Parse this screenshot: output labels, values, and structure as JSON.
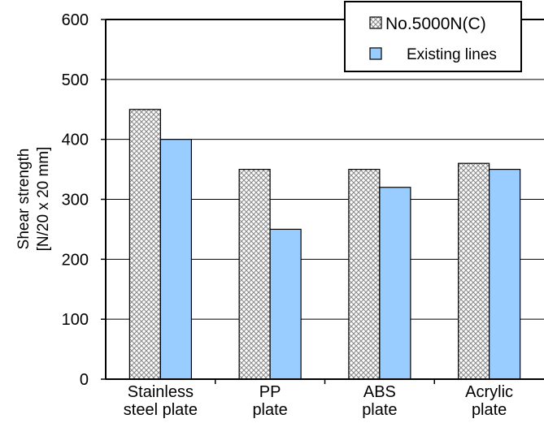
{
  "chart_data": {
    "type": "bar",
    "categories": [
      [
        "Stainless",
        "steel plate"
      ],
      [
        "PP",
        "plate"
      ],
      [
        "ABS",
        "plate"
      ],
      [
        "Acrylic",
        "plate"
      ]
    ],
    "series": [
      {
        "name": "No.5000N(C)",
        "values": [
          450,
          350,
          350,
          360
        ],
        "pattern": "crosshatch"
      },
      {
        "name": "Existing lines",
        "values": [
          400,
          250,
          320,
          350
        ],
        "color": "#99ccff"
      }
    ],
    "ylabel": [
      "Shear strength",
      "[N/20 x 20 mm]"
    ],
    "ylim": [
      0,
      600
    ],
    "yticks": [
      0,
      100,
      200,
      300,
      400,
      500,
      600
    ],
    "grid": true,
    "legend_position": "top-right"
  }
}
